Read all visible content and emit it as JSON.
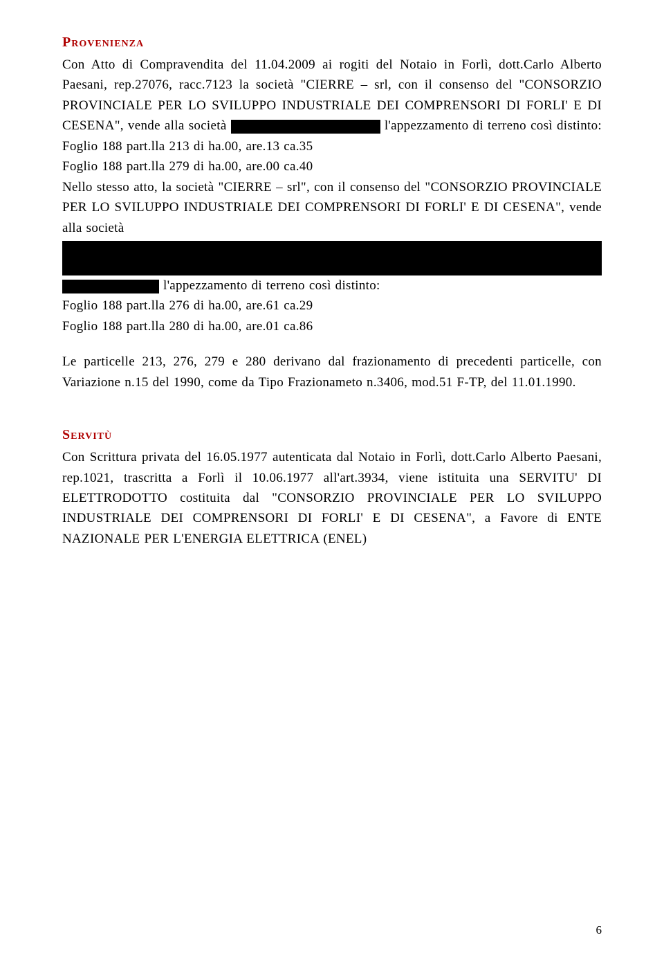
{
  "doc": {
    "heading1": "Provenienza",
    "p1": "Con Atto di Compravendita del 11.04.2009 ai rogiti del Notaio in Forlì, dott.Carlo Alberto Paesani, rep.27076, racc.7123",
    "p2_pre": "la società \"CIERRE – srl, con il consenso del \"CONSORZIO PROVINCIALE PER LO SVILUPPO INDUSTRIALE DEI COMPRENSORI DI FORLI' E DI CESENA\", vende alla società ",
    "p2_post": " l'appezzamento di terreno così distinto: Foglio 188 part.lla 213 di ha.00, are.13 ca.35",
    "p3": "Foglio 188 part.lla 279 di ha.00, are.00 ca.40",
    "p4": "Nello stesso atto, la società \"CIERRE – srl\", con il consenso del \"CONSORZIO PROVINCIALE PER LO SVILUPPO INDUSTRIALE DEI COMPRENSORI DI FORLI' E DI CESENA\", vende alla società",
    "p5_post": " l'appezzamento di terreno così distinto:",
    "p6": "Foglio 188 part.lla 276 di ha.00, are.61 ca.29",
    "p7": "Foglio 188 part.lla 280 di ha.00, are.01 ca.86",
    "p8": "Le particelle 213, 276, 279 e 280 derivano dal frazionamento di precedenti particelle, con Variazione n.15 del 1990, come da Tipo Frazionameto n.3406, mod.51 F-TP, del 11.01.1990.",
    "heading2": "Servitù",
    "p9": "Con Scrittura privata del 16.05.1977 autenticata dal Notaio in Forlì, dott.Carlo Alberto Paesani, rep.1021, trascritta a Forlì il 10.06.1977 all'art.3934, viene istituita una SERVITU' DI ELETTRODOTTO costituita dal \"CONSORZIO PROVINCIALE PER LO SVILUPPO INDUSTRIALE DEI COMPRENSORI DI FORLI' E DI CESENA\", a Favore di ENTE NAZIONALE PER L'ENERGIA ELETTRICA (ENEL)",
    "pagenum": "6"
  },
  "style": {
    "redaction_color": "#000000",
    "heading_color": "#b00000",
    "redaction_inline1_w": 216,
    "redaction_inline1_h": 20,
    "redaction_block_w": 780,
    "redaction_block_h": 50,
    "redaction_inline2_w": 140,
    "redaction_inline2_h": 20
  }
}
